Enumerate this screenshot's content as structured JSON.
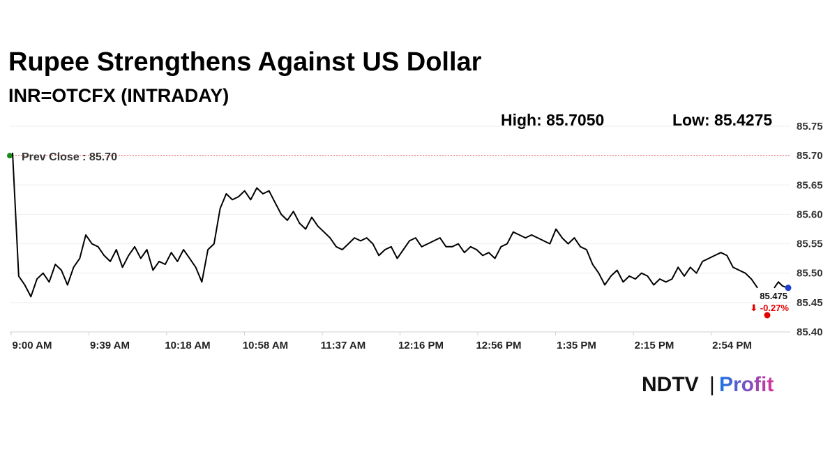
{
  "header": {
    "title": "Rupee Strengthens Against US Dollar",
    "subtitle": "INR=OTCFX (INTRADAY)",
    "high_text": "High: 85.7050",
    "low_text": "Low: 85.4275"
  },
  "brand": {
    "name_part1": "NDTV",
    "divider": "|",
    "name_part2": "Profit"
  },
  "colors": {
    "line": "#000000",
    "prev_close_line": "#e05050",
    "prev_close_dot": "#1a8a1a",
    "last_dot": "#1f3fd0",
    "change": "#e00000",
    "brand_gradient_start": "#1a73e8",
    "brand_gradient_end": "#d6339a"
  },
  "chart_data": {
    "type": "line",
    "ylim": [
      85.4,
      85.75
    ],
    "yticks": [
      "85.75",
      "85.70",
      "85.65",
      "85.60",
      "85.55",
      "85.50",
      "85.45",
      "85.40"
    ],
    "xticks": [
      "9:00 AM",
      "9:39 AM",
      "10:18 AM",
      "10:58 AM",
      "11:37 AM",
      "12:16 PM",
      "12:56 PM",
      "1:35 PM",
      "2:15 PM",
      "2:54 PM"
    ],
    "prev_close": 85.7,
    "prev_close_label": "Prev Close : 85.70",
    "last_value_label": "85.475",
    "change_label": "⬇ -0.27%",
    "grid": "horizontal",
    "series": [
      {
        "values": [
          85.705,
          85.495,
          85.48,
          85.46,
          85.49,
          85.5,
          85.485,
          85.515,
          85.505,
          85.48,
          85.51,
          85.525,
          85.565,
          85.55,
          85.545,
          85.53,
          85.52,
          85.54,
          85.51,
          85.53,
          85.545,
          85.525,
          85.54,
          85.505,
          85.52,
          85.515,
          85.535,
          85.52,
          85.54,
          85.525,
          85.51,
          85.485,
          85.54,
          85.55,
          85.61,
          85.635,
          85.625,
          85.63,
          85.64,
          85.625,
          85.645,
          85.635,
          85.64,
          85.62,
          85.6,
          85.59,
          85.605,
          85.585,
          85.575,
          85.595,
          85.58,
          85.57,
          85.56,
          85.545,
          85.54,
          85.55,
          85.56,
          85.555,
          85.56,
          85.55,
          85.53,
          85.54,
          85.545,
          85.525,
          85.54,
          85.555,
          85.56,
          85.545,
          85.55,
          85.555,
          85.56,
          85.545,
          85.545,
          85.55,
          85.535,
          85.545,
          85.54,
          85.53,
          85.535,
          85.525,
          85.545,
          85.55,
          85.57,
          85.565,
          85.56,
          85.565,
          85.56,
          85.555,
          85.55,
          85.575,
          85.56,
          85.55,
          85.56,
          85.545,
          85.54,
          85.515,
          85.5,
          85.48,
          85.495,
          85.505,
          85.485,
          85.495,
          85.49,
          85.5,
          85.495,
          85.48,
          85.49,
          85.485,
          85.49,
          85.51,
          85.495,
          85.51,
          85.5,
          85.52,
          85.525,
          85.53,
          85.535,
          85.53,
          85.51,
          85.505,
          85.5,
          85.49,
          85.475
        ]
      }
    ]
  }
}
